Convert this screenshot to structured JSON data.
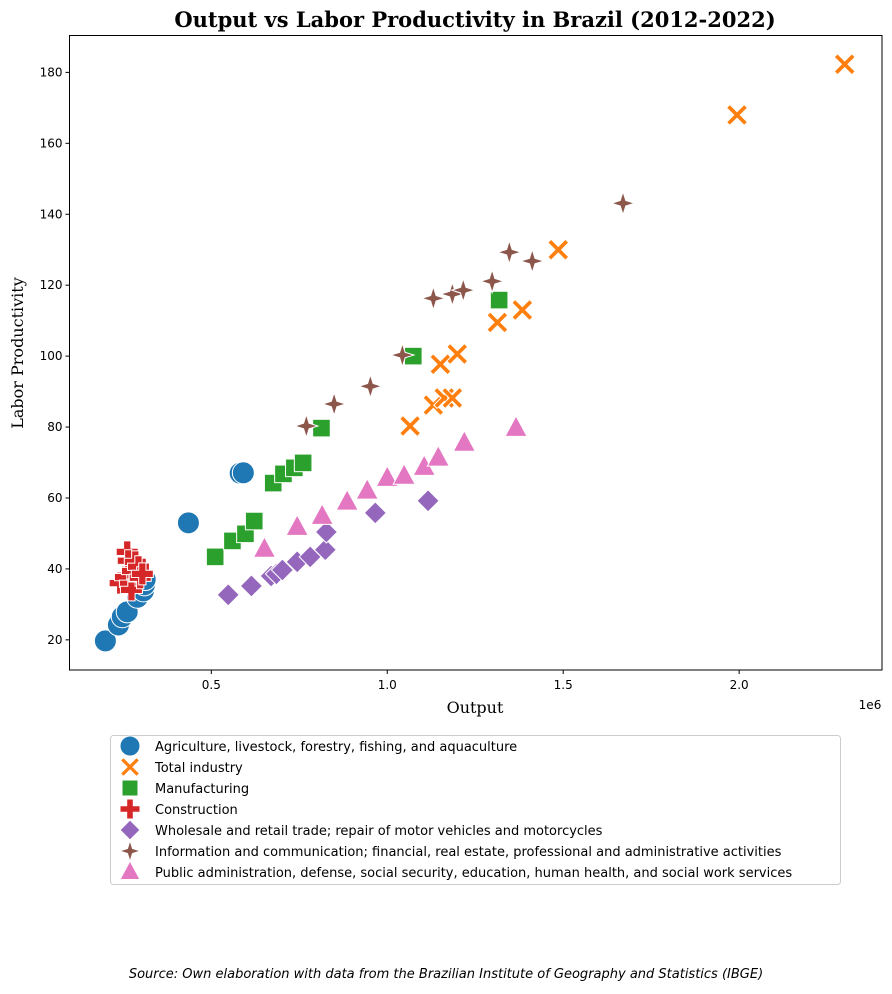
{
  "chart_data": {
    "type": "scatter",
    "title": "Output vs Labor Productivity in Brazil (2012-2022)",
    "xlabel": "Output",
    "ylabel": "Labor Productivity",
    "x_offset_label": "1e6",
    "xlim": [
      0.097,
      2.406
    ],
    "ylim": [
      11.5,
      190.4
    ],
    "x_ticks": [
      "0.5",
      "1.0",
      "1.5",
      "2.0"
    ],
    "x_tick_values": [
      0.5,
      1.0,
      1.5,
      2.0
    ],
    "y_ticks": [
      "20",
      "40",
      "60",
      "80",
      "100",
      "120",
      "140",
      "160",
      "180"
    ],
    "y_tick_values": [
      20,
      40,
      60,
      80,
      100,
      120,
      140,
      160,
      180
    ],
    "grid": false,
    "legend_placement": "below",
    "x_unit_note": "x values in millions (×1e6)",
    "series": [
      {
        "name": "Agriculture, livestock, forestry, fishing, and aquaculture",
        "marker": "circle",
        "color": "#1f77b4",
        "x": [
          0.199,
          0.236,
          0.247,
          0.261,
          0.29,
          0.307,
          0.31,
          0.312,
          0.435,
          0.582,
          0.591
        ],
        "y": [
          19.7,
          24.2,
          26.5,
          27.9,
          32.0,
          33.8,
          35.5,
          37.0,
          53.0,
          67.0,
          67.1
        ]
      },
      {
        "name": "Total industry",
        "marker": "x",
        "color": "#ff7f0e",
        "x": [
          1.065,
          1.131,
          1.151,
          1.162,
          1.185,
          1.199,
          1.313,
          1.384,
          1.486,
          1.994,
          2.3
        ],
        "y": [
          80.3,
          86.2,
          97.7,
          88.2,
          88.2,
          100.6,
          109.5,
          113.0,
          130.0,
          168.0,
          182.3
        ]
      },
      {
        "name": "Manufacturing",
        "marker": "square",
        "color": "#2ca02c",
        "x": [
          0.511,
          0.56,
          0.597,
          0.622,
          0.676,
          0.705,
          0.736,
          0.761,
          0.813,
          1.074,
          1.318
        ],
        "y": [
          43.4,
          47.9,
          49.9,
          53.5,
          64.2,
          66.8,
          68.5,
          69.9,
          79.7,
          100.0,
          115.8
        ]
      },
      {
        "name": "Construction",
        "marker": "plus",
        "color": "#d62728",
        "x": [
          0.241,
          0.256,
          0.261,
          0.264,
          0.27,
          0.273,
          0.276,
          0.284,
          0.293,
          0.298,
          0.304
        ],
        "y": [
          36.0,
          37.7,
          44.8,
          42.3,
          35.8,
          34.1,
          39.4,
          42.0,
          40.6,
          37.5,
          38.6
        ]
      },
      {
        "name": "Wholesale and retail trade; repair of motor vehicles and motorcycles",
        "marker": "diamond",
        "color": "#9467bd",
        "x": [
          0.548,
          0.614,
          0.67,
          0.685,
          0.702,
          0.744,
          0.781,
          0.824,
          0.827,
          0.966,
          1.116
        ],
        "y": [
          32.7,
          35.2,
          38.0,
          38.6,
          39.7,
          42.0,
          43.4,
          45.4,
          50.4,
          55.8,
          59.2
        ]
      },
      {
        "name": "Information and communication; financial, real estate, professional and administrative activities",
        "marker": "star4",
        "color": "#8c564b",
        "x": [
          0.77,
          0.849,
          0.952,
          1.043,
          1.131,
          1.185,
          1.216,
          1.298,
          1.347,
          1.412,
          1.67
        ],
        "y": [
          80.3,
          86.5,
          91.5,
          100.3,
          116.3,
          117.5,
          118.6,
          121.1,
          129.3,
          126.8,
          143.1
        ]
      },
      {
        "name": "Public administration, defense, social security, education, human health, and social work services",
        "marker": "triangle",
        "color": "#e377c2",
        "x": [
          0.651,
          0.744,
          0.815,
          0.886,
          0.943,
          1.0,
          1.048,
          1.105,
          1.145,
          1.219,
          1.366
        ],
        "y": [
          45.6,
          51.8,
          54.9,
          58.9,
          62.0,
          65.6,
          66.2,
          68.7,
          71.3,
          75.5,
          79.7
        ]
      }
    ]
  },
  "source_note": "Source: Own elaboration with data from the Brazilian Institute of Geography and Statistics (IBGE)"
}
